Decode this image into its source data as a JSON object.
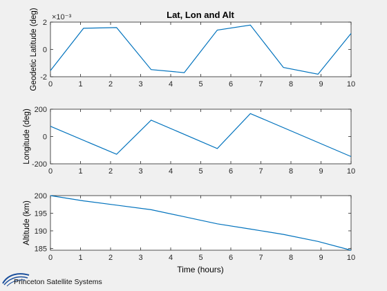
{
  "title": "Lat, Lon and Alt",
  "shared_x": {
    "label": "Time (hours)",
    "ticks": [
      0,
      1,
      2,
      3,
      4,
      5,
      6,
      7,
      8,
      9,
      10
    ],
    "range": [
      0,
      10
    ]
  },
  "logo": {
    "text": "Princeton Satellite Systems"
  },
  "colors": {
    "line": "#0072bd",
    "axes_bg": "#ffffff",
    "figure_bg": "#f0f0f0",
    "grid": "#000000"
  },
  "chart_data": [
    {
      "type": "line",
      "title": "Lat, Lon and Alt",
      "xlabel": "",
      "ylabel": "Geodetic Latitude (deg)",
      "exponent_label": "×10⁻³",
      "xlim": [
        0,
        10
      ],
      "ylim": [
        -2,
        2
      ],
      "yticks": [
        -2,
        0,
        2
      ],
      "grid": false,
      "series": [
        {
          "x": [
            0,
            1.1,
            2.2,
            3.35,
            4.45,
            5.55,
            6.65,
            7.75,
            8.9,
            10
          ],
          "y": [
            -1.55,
            1.55,
            1.6,
            -1.48,
            -1.7,
            1.42,
            1.78,
            -1.32,
            -1.82,
            1.17
          ]
        }
      ]
    },
    {
      "type": "line",
      "title": "",
      "xlabel": "",
      "ylabel": "Longitude (deg)",
      "xlim": [
        0,
        10
      ],
      "ylim": [
        -200,
        200
      ],
      "yticks": [
        -200,
        0,
        200
      ],
      "grid": false,
      "series": [
        {
          "x": [
            0,
            2.2,
            3.35,
            5.55,
            6.65,
            10
          ],
          "y": [
            75,
            -130,
            120,
            -88,
            168,
            -147
          ]
        }
      ]
    },
    {
      "type": "line",
      "title": "",
      "xlabel": "Time (hours)",
      "ylabel": "Altitude (km)",
      "xlim": [
        0,
        10
      ],
      "ylim": [
        184.5,
        200
      ],
      "yticks": [
        185,
        190,
        195,
        200
      ],
      "grid": false,
      "series": [
        {
          "x": [
            0,
            1.1,
            2.2,
            3.35,
            4.45,
            5.55,
            6.65,
            7.75,
            8.9,
            10
          ],
          "y": [
            200,
            198.5,
            197.3,
            196,
            194,
            192,
            190.5,
            189,
            187,
            184.5
          ]
        }
      ]
    }
  ]
}
